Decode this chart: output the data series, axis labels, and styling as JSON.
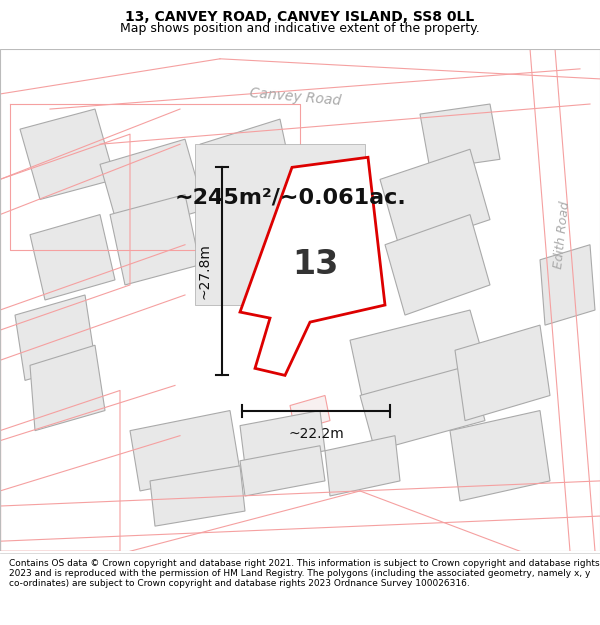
{
  "title": "13, CANVEY ROAD, CANVEY ISLAND, SS8 0LL",
  "subtitle": "Map shows position and indicative extent of the property.",
  "area_text": "~245m²/~0.061ac.",
  "width_text": "~22.2m",
  "height_text": "~27.8m",
  "property_number": "13",
  "footer_text": "Contains OS data © Crown copyright and database right 2021. This information is subject to Crown copyright and database rights 2023 and is reproduced with the permission of HM Land Registry. The polygons (including the associated geometry, namely x, y co-ordinates) are subject to Crown copyright and database rights 2023 Ordnance Survey 100026316.",
  "bg_color": "#ffffff",
  "building_fill": "#e8e8e8",
  "building_edge": "#aaaaaa",
  "parcel_fill": "#f8f0f0",
  "parcel_edge": "#f5a0a0",
  "highlight_color": "#dd0000",
  "road_label_color": "#aaaaaa",
  "title_color": "#000000",
  "text_color": "#000000",
  "arrow_color": "#111111",
  "area_fontsize": 16,
  "number_fontsize": 24,
  "dim_fontsize": 10,
  "title_fontsize": 10,
  "subtitle_fontsize": 9,
  "footer_fontsize": 6.5
}
